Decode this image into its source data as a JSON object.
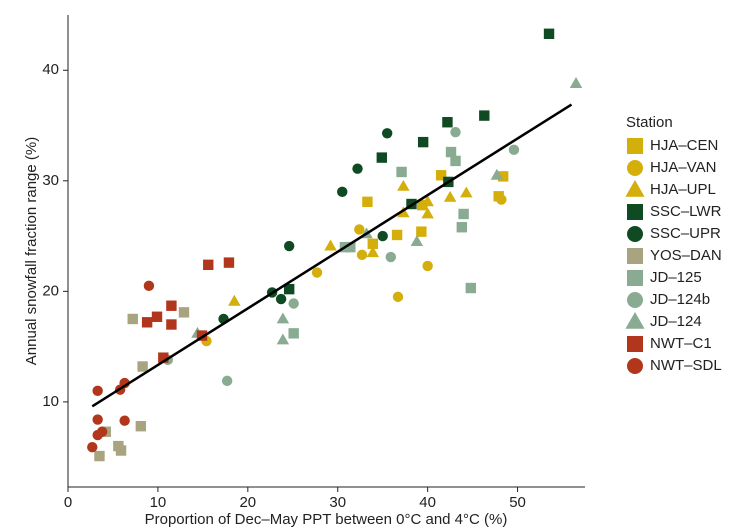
{
  "chart_data": {
    "type": "scatter",
    "x_label": "Proportion of Dec–May PPT between 0°C and 4°C (%)",
    "y_label": "Annual snowfall fraction range (%)",
    "legend_title": "Station",
    "legend_position": "right",
    "xlim": [
      0,
      57.5
    ],
    "ylim": [
      2.3,
      45
    ],
    "xticks": [
      0,
      10,
      20,
      30,
      40,
      50
    ],
    "yticks": [
      10,
      20,
      30,
      40
    ],
    "fit_line": {
      "color": "#000000",
      "x": [
        2.7,
        56
      ],
      "y": [
        9.6,
        36.9
      ]
    },
    "series": [
      {
        "name": "HJA–CEN",
        "color": "#d4ae0b",
        "marker": "square",
        "x": [
          41.5,
          48.4,
          33.3,
          36.6,
          33.9,
          39.3,
          47.9,
          39.4
        ],
        "y": [
          30.5,
          30.4,
          28.1,
          25.1,
          24.3,
          25.4,
          28.6,
          27.8
        ]
      },
      {
        "name": "HJA–VAN",
        "color": "#d4ae0b",
        "marker": "circle",
        "x": [
          15.4,
          27.7,
          32.4,
          32.7,
          36.7,
          40.0,
          48.2
        ],
        "y": [
          15.5,
          21.7,
          25.6,
          23.3,
          19.5,
          22.3,
          28.3
        ]
      },
      {
        "name": "HJA–UPL",
        "color": "#d4ae0b",
        "marker": "triangle",
        "x": [
          18.5,
          29.2,
          33.9,
          37.3,
          37.3,
          40.0,
          42.5,
          44.3,
          40.0
        ],
        "y": [
          19.1,
          24.1,
          23.5,
          29.5,
          27.1,
          27.0,
          28.5,
          28.9,
          28.1
        ]
      },
      {
        "name": "SSC–LWR",
        "color": "#0f4a23",
        "marker": "square",
        "x": [
          53.5,
          46.3,
          42.2,
          39.5,
          34.9,
          38.2,
          42.3,
          24.6
        ],
        "y": [
          43.3,
          35.9,
          35.3,
          33.5,
          32.1,
          27.9,
          29.9,
          20.2
        ]
      },
      {
        "name": "SSC–UPR",
        "color": "#0f4a23",
        "marker": "circle",
        "x": [
          35.5,
          32.2,
          30.5,
          35.0,
          24.6,
          22.7,
          23.7,
          17.3
        ],
        "y": [
          34.3,
          31.1,
          29.0,
          25.0,
          24.1,
          19.9,
          19.3,
          17.5
        ]
      },
      {
        "name": "YOS–DAN",
        "color": "#a9a480",
        "marker": "square",
        "x": [
          7.2,
          12.9,
          8.3,
          8.1,
          4.2,
          3.5,
          5.6,
          5.9
        ],
        "y": [
          17.5,
          18.1,
          13.2,
          7.8,
          7.3,
          5.1,
          6.0,
          5.6
        ]
      },
      {
        "name": "JD–125",
        "color": "#89ab92",
        "marker": "square",
        "x": [
          37.1,
          42.6,
          43.1,
          44.0,
          43.8,
          44.8,
          30.8,
          31.4,
          25.1
        ],
        "y": [
          30.8,
          32.6,
          31.8,
          27.0,
          25.8,
          20.3,
          24.0,
          24.0,
          16.2
        ]
      },
      {
        "name": "JD–124b",
        "color": "#89ab92",
        "marker": "circle",
        "x": [
          43.1,
          49.6,
          35.9,
          17.7,
          25.1,
          11.1
        ],
        "y": [
          34.4,
          32.8,
          23.1,
          11.9,
          18.9,
          13.8
        ]
      },
      {
        "name": "JD–124",
        "color": "#89ab92",
        "marker": "triangle",
        "x": [
          56.5,
          47.7,
          38.8,
          23.9,
          23.9,
          14.4,
          33.2
        ],
        "y": [
          38.8,
          30.5,
          24.5,
          17.5,
          15.6,
          16.2,
          25.2
        ]
      },
      {
        "name": "NWT–C1",
        "color": "#b1361b",
        "marker": "square",
        "x": [
          15.6,
          17.9,
          11.5,
          9.9,
          8.8,
          11.5,
          10.6,
          14.9
        ],
        "y": [
          22.4,
          22.6,
          18.7,
          17.7,
          17.2,
          17.0,
          14.0,
          16.0
        ]
      },
      {
        "name": "NWT–SDL",
        "color": "#b1361b",
        "marker": "circle",
        "x": [
          9.0,
          3.3,
          6.3,
          5.8,
          3.3,
          6.3,
          3.8,
          3.3,
          2.7
        ],
        "y": [
          20.5,
          11.0,
          11.7,
          11.1,
          8.4,
          8.3,
          7.3,
          7.0,
          5.9
        ]
      }
    ]
  }
}
